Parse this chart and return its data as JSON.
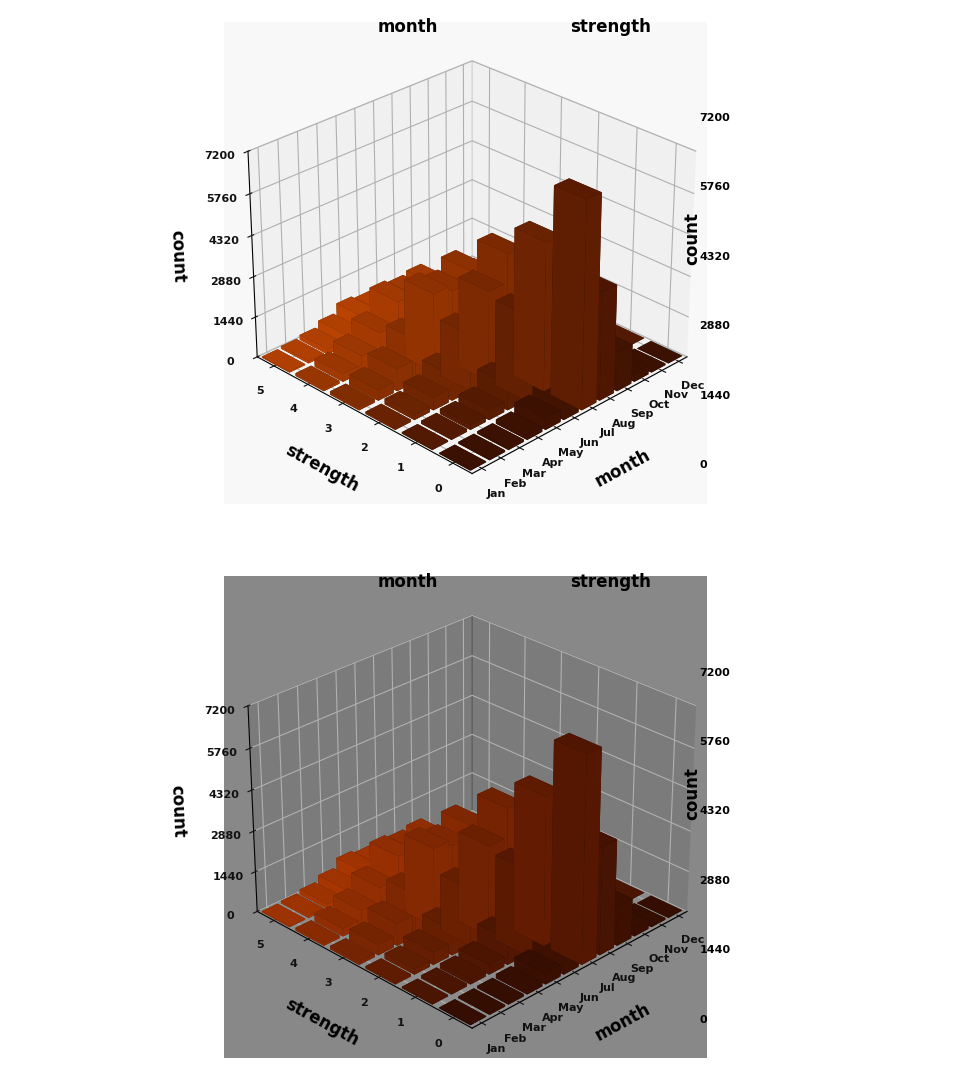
{
  "months": [
    "Jan",
    "Feb",
    "Mar",
    "Apr",
    "May",
    "Jun",
    "Jul",
    "Aug",
    "Sep",
    "Oct",
    "Nov",
    "Dec"
  ],
  "strengths": [
    "0",
    "1",
    "2",
    "3",
    "4",
    "5"
  ],
  "yticks": [
    0,
    1440,
    2880,
    4320,
    5760,
    7200
  ],
  "data": [
    [
      30,
      60,
      80,
      150,
      400,
      1200,
      7200,
      3800,
      1400,
      300,
      60,
      15
    ],
    [
      50,
      100,
      180,
      350,
      900,
      3000,
      5200,
      2800,
      1100,
      250,
      50,
      10
    ],
    [
      80,
      200,
      450,
      900,
      2000,
      3200,
      4200,
      2200,
      900,
      200,
      40,
      8
    ],
    [
      120,
      380,
      800,
      1500,
      2800,
      2600,
      3000,
      1600,
      600,
      140,
      28,
      5
    ],
    [
      100,
      280,
      600,
      1100,
      1900,
      1800,
      1900,
      1000,
      380,
      90,
      18,
      3
    ],
    [
      40,
      90,
      180,
      380,
      700,
      600,
      600,
      350,
      130,
      30,
      6,
      1
    ]
  ],
  "top_bg": "#f8f8f8",
  "top_pane_color": "#eaeaea",
  "top_floor_color": "#f0f0f0",
  "bot_bg": "#888888",
  "bot_pane_color": "#707070",
  "bot_floor_color": "#909090",
  "label_color_top": "#111111",
  "label_color_bot": "#111111",
  "font_size_label": 13,
  "font_size_tick": 8,
  "font_size_axis_label": 12,
  "elev": 28,
  "azim": 225
}
